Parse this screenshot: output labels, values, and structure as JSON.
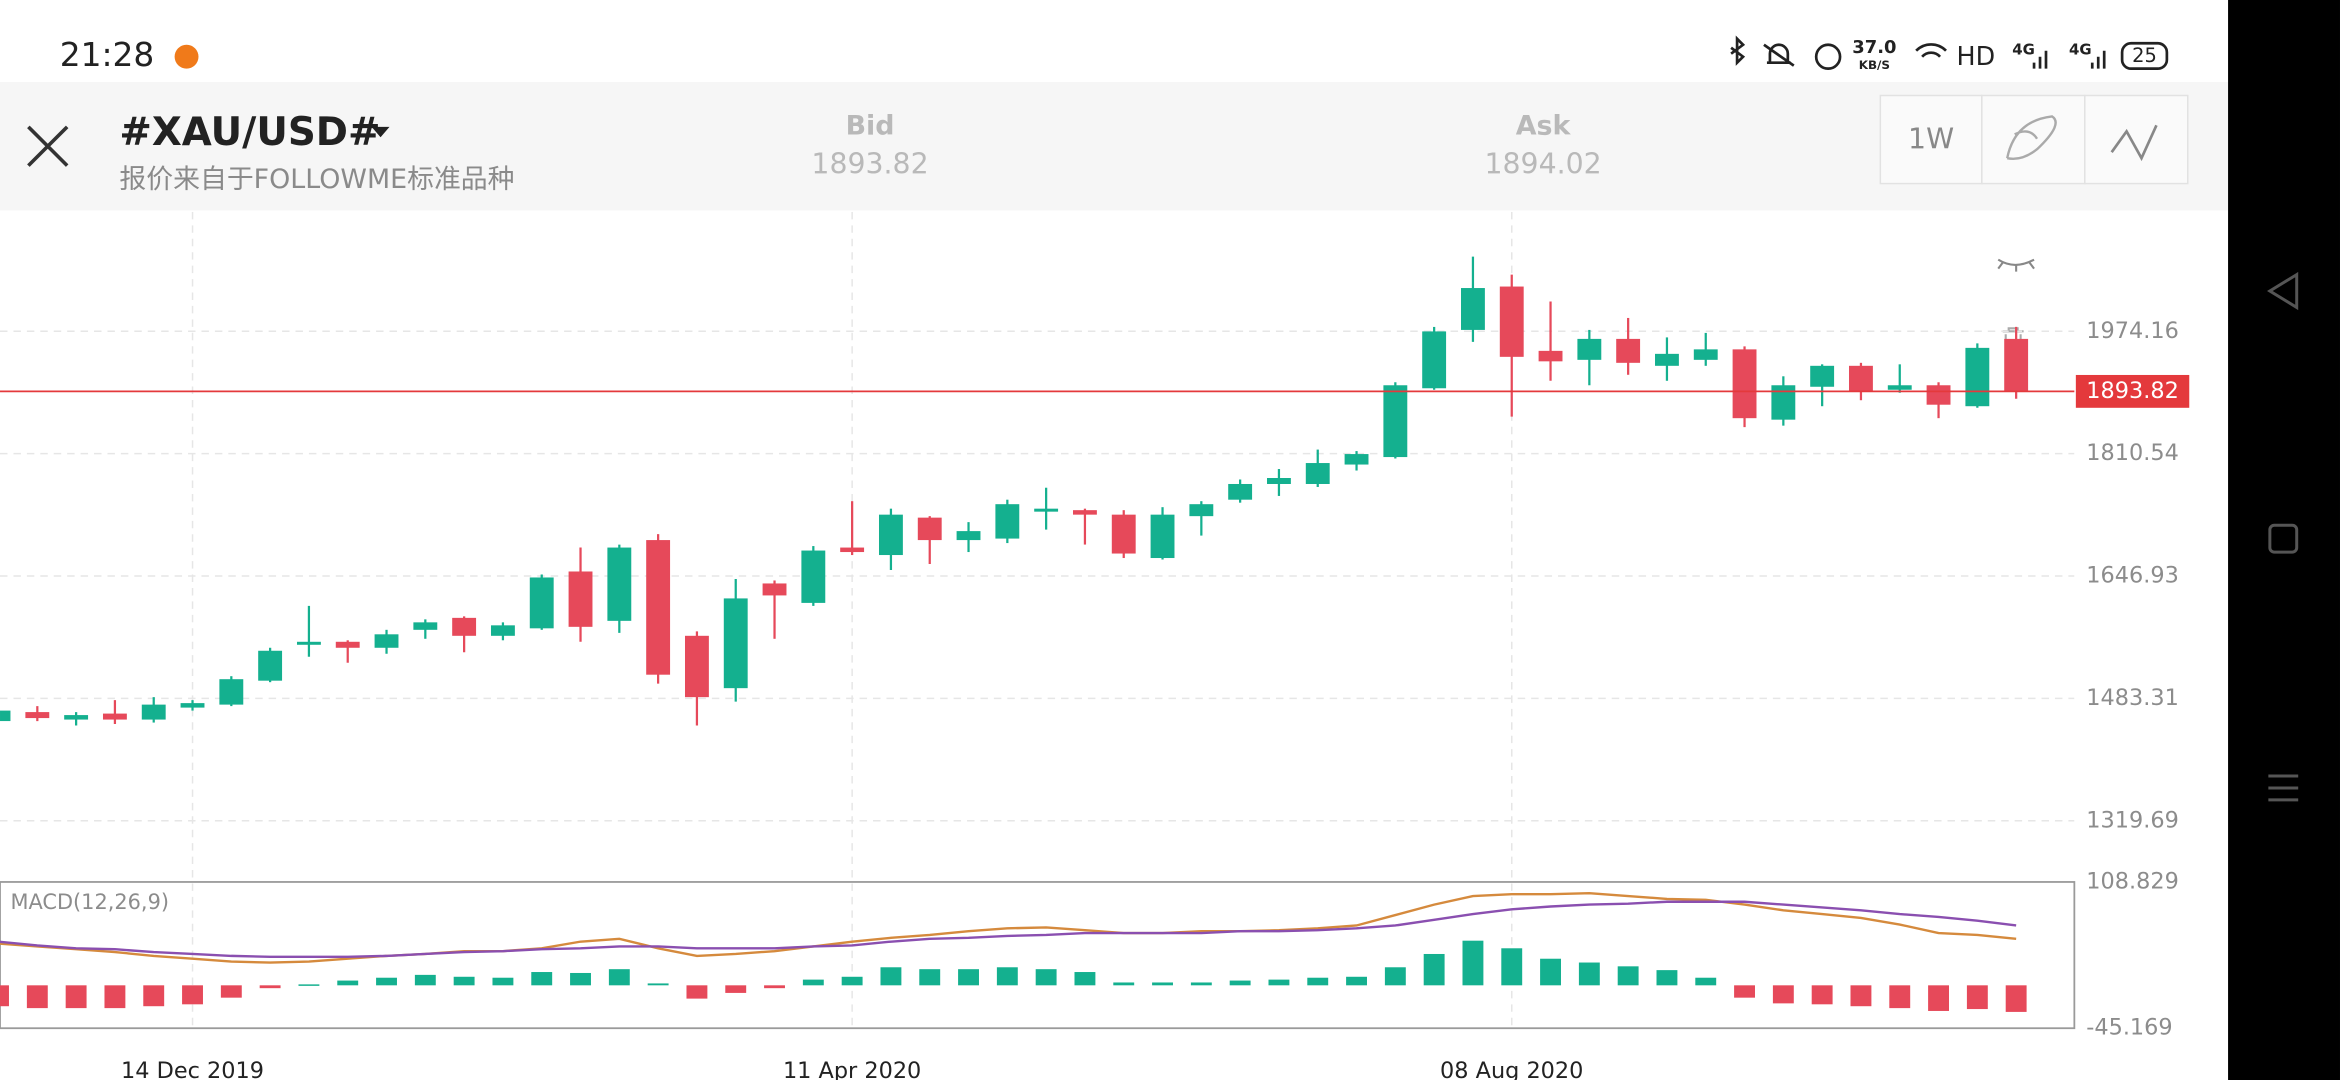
{
  "status_bar": {
    "time": "21:28",
    "network_speed": "37.0",
    "network_speed_unit": "KB/S",
    "hd": "HD",
    "signal_1": "4G",
    "signal_2": "4G",
    "battery": "25"
  },
  "header": {
    "symbol": "#XAU/USD#",
    "source": "报价来自于FOLLOWME标准品种",
    "bid_label": "Bid",
    "bid": 1893.82,
    "ask_label": "Ask",
    "ask": 1894.02,
    "timeframe": "1W"
  },
  "chart_data": [
    {
      "type": "candlestick",
      "categories": [
        null,
        null,
        null,
        null,
        null,
        "14 Dec 2019",
        null,
        null,
        null,
        null,
        null,
        null,
        null,
        null,
        null,
        null,
        null,
        null,
        null,
        null,
        null,
        null,
        "11 Apr 2020",
        null,
        null,
        null,
        null,
        null,
        null,
        null,
        null,
        null,
        null,
        null,
        null,
        null,
        null,
        null,
        null,
        "08 Aug 2020",
        null,
        null,
        null,
        null,
        null,
        null,
        null,
        null,
        null,
        null,
        null,
        null,
        null
      ],
      "open": [
        1453,
        1465,
        1455,
        1463,
        1455,
        1471,
        1475,
        1507,
        1555,
        1559,
        1551,
        1575,
        1591,
        1567,
        1577,
        1653,
        1587,
        1695,
        1567,
        1497,
        1637,
        1611,
        1685,
        1675,
        1725,
        1695,
        1697,
        1733,
        1735,
        1729,
        1671,
        1727,
        1749,
        1770,
        1770,
        1796,
        1806,
        1898,
        1976,
        2034,
        1948,
        1936,
        1964,
        1928,
        1936,
        1950,
        1856,
        1900,
        1928,
        1896,
        1902,
        1874,
        1964
      ],
      "high": [
        1471,
        1473,
        1465,
        1481,
        1485,
        1481,
        1513,
        1551,
        1607,
        1561,
        1575,
        1589,
        1593,
        1585,
        1649,
        1685,
        1689,
        1703,
        1573,
        1643,
        1641,
        1687,
        1747,
        1737,
        1727,
        1719,
        1749,
        1765,
        1737,
        1735,
        1739,
        1747,
        1776,
        1790,
        1816,
        1814,
        1906,
        1980,
        2074,
        2050,
        2014,
        1976,
        1992,
        1966,
        1972,
        1954,
        1914,
        1930,
        1932,
        1930,
        1906,
        1958,
        1980
      ],
      "low": [
        1447,
        1453,
        1447,
        1449,
        1451,
        1467,
        1473,
        1505,
        1539,
        1531,
        1543,
        1563,
        1545,
        1561,
        1575,
        1559,
        1571,
        1503,
        1447,
        1479,
        1563,
        1607,
        1675,
        1655,
        1663,
        1679,
        1691,
        1709,
        1689,
        1671,
        1669,
        1701,
        1745,
        1754,
        1766,
        1788,
        1804,
        1896,
        1960,
        1860,
        1908,
        1902,
        1916,
        1908,
        1928,
        1846,
        1848,
        1874,
        1882,
        1892,
        1858,
        1872,
        1884
      ],
      "close": [
        1467,
        1457,
        1461,
        1455,
        1475,
        1477,
        1509,
        1547,
        1559,
        1551,
        1569,
        1585,
        1567,
        1581,
        1645,
        1579,
        1685,
        1515,
        1485,
        1617,
        1621,
        1681,
        1679,
        1729,
        1695,
        1707,
        1743,
        1737,
        1729,
        1677,
        1729,
        1743,
        1770,
        1778,
        1798,
        1810,
        1902,
        1974,
        2032,
        1940,
        1934,
        1964,
        1932,
        1944,
        1950,
        1858,
        1902,
        1928,
        1894,
        1902,
        1876,
        1952,
        1894
      ],
      "up_color": "#14b08f",
      "down_color": "#e6495a",
      "ylim": [
        1259.81,
        2133.79
      ],
      "yticks": [
        1319.69,
        1483.31,
        1646.93,
        1810.54,
        1974.16
      ],
      "current_price": 1893.82,
      "current_price_color": "#e4393c",
      "grid": true
    },
    {
      "type": "macd",
      "title": "MACD(12,26,9)",
      "values": [
        -22,
        -24,
        -24,
        -24,
        -22,
        -20,
        -13,
        -3,
        1,
        5,
        8,
        11,
        9,
        8,
        14,
        13,
        17,
        2,
        -14,
        -8,
        -3,
        6,
        9,
        19,
        17,
        17,
        19,
        17,
        14,
        3,
        3,
        3,
        5,
        6,
        8,
        9,
        19,
        33,
        47,
        39,
        28,
        24,
        20,
        16,
        8,
        -13,
        -19,
        -20,
        -22,
        -24,
        -27,
        -25,
        -28
      ],
      "up_color": "#14b08f",
      "down_color": "#e6495a",
      "series": [
        {
          "color": "#d58a3d",
          "values": [
            44,
            41,
            38,
            35,
            31,
            28,
            25,
            24,
            25,
            28,
            31,
            33,
            36,
            36,
            39,
            46,
            49,
            39,
            31,
            33,
            36,
            41,
            46,
            50,
            53,
            57,
            60,
            61,
            58,
            55,
            55,
            57,
            57,
            58,
            60,
            63,
            74,
            85,
            94,
            96,
            96,
            97,
            94,
            91,
            90,
            85,
            79,
            75,
            71,
            64,
            55,
            53,
            49
          ]
        },
        {
          "color": "#8a4fb0",
          "values": [
            46,
            42,
            39,
            38,
            35,
            33,
            31,
            30,
            30,
            30,
            31,
            33,
            35,
            36,
            38,
            39,
            41,
            41,
            39,
            39,
            39,
            41,
            42,
            46,
            49,
            50,
            52,
            53,
            55,
            55,
            55,
            55,
            57,
            57,
            58,
            60,
            63,
            69,
            75,
            80,
            83,
            85,
            86,
            88,
            88,
            88,
            85,
            82,
            79,
            75,
            72,
            68,
            63
          ]
        }
      ],
      "ylim": [
        -45.169,
        108.829
      ],
      "yticks": [
        -45.169,
        108.829
      ]
    }
  ]
}
